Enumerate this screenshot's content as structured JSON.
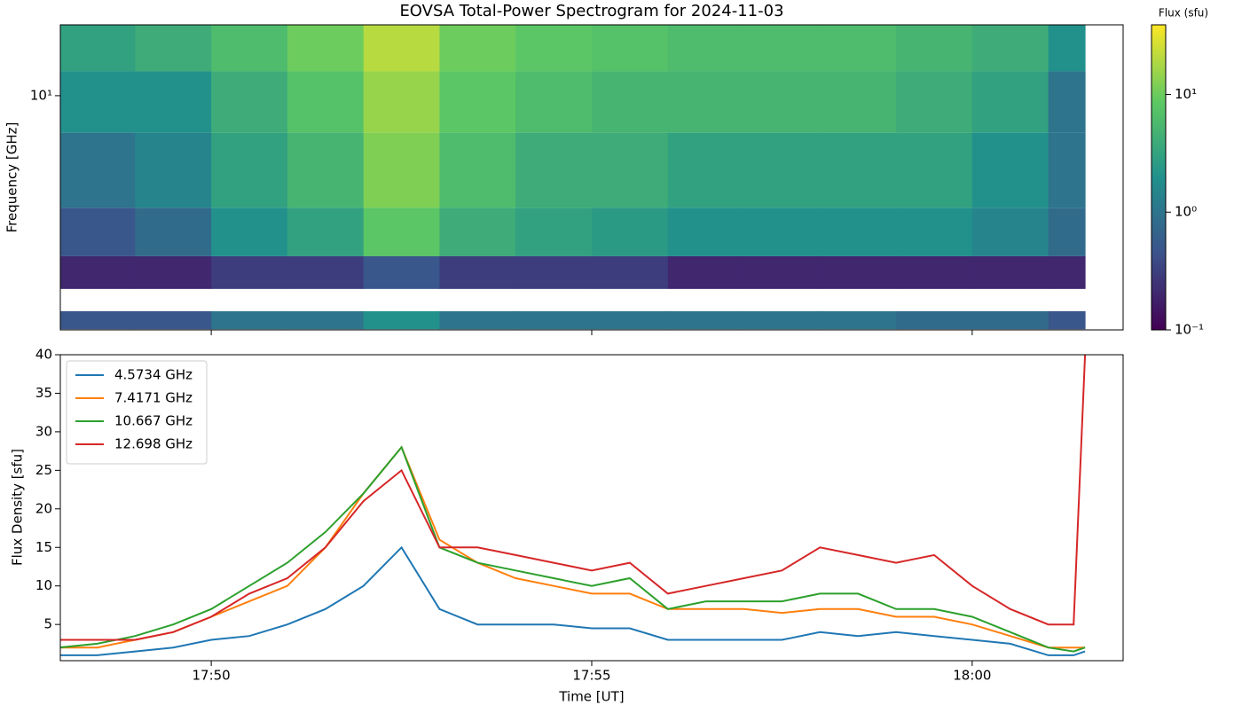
{
  "chart_data": [
    {
      "type": "heatmap",
      "title": "EOVSA Total-Power Spectrogram for 2024-11-03",
      "ylabel": "Frequency [GHz]",
      "xlim": [
        "17:48:01",
        "18:01:59"
      ],
      "xticks": [
        "17:50",
        "17:55",
        "18:00"
      ],
      "ylim": [
        2.4,
        15.4
      ],
      "log_y": true,
      "yticks": [
        {
          "value": 10,
          "label": "10¹"
        }
      ],
      "x_edges": [
        "17:48:00",
        "17:49:00",
        "17:50:00",
        "17:51:00",
        "17:52:00",
        "17:53:00",
        "17:54:00",
        "17:55:00",
        "17:56:00",
        "17:57:00",
        "17:58:00",
        "17:59:00",
        "18:00:00",
        "18:01:00",
        "18:01:29"
      ],
      "freq_bands": [
        [
          11.6,
          15.4
        ],
        [
          7.98,
          11.6
        ],
        [
          5.05,
          7.98
        ],
        [
          3.76,
          5.05
        ],
        [
          3.08,
          3.76
        ],
        [
          2.41,
          2.69
        ]
      ],
      "z": [
        [
          3,
          4,
          6,
          10,
          20,
          10,
          8,
          7,
          6,
          6,
          6,
          5,
          4,
          2
        ],
        [
          2,
          2,
          4,
          7,
          15,
          8,
          6,
          5,
          5,
          5,
          5,
          4,
          3,
          1
        ],
        [
          1,
          1.5,
          3,
          5,
          12,
          6,
          4,
          4,
          3,
          3,
          3,
          3,
          2,
          1
        ],
        [
          0.5,
          0.8,
          2,
          3,
          8,
          4,
          3,
          2.5,
          2,
          2,
          2,
          2,
          1.5,
          0.8
        ],
        [
          0.2,
          0.2,
          0.3,
          0.3,
          0.5,
          0.3,
          0.3,
          0.3,
          0.2,
          0.2,
          0.2,
          0.2,
          0.2,
          0.2
        ],
        [
          0.5,
          0.5,
          1,
          1,
          2,
          1,
          1,
          1,
          1,
          1,
          1,
          0.8,
          0.8,
          0.5
        ]
      ],
      "colorbar_label": "Flux (sfu)",
      "clim": [
        0.1,
        39
      ],
      "colormap": "viridis",
      "cticks": [
        {
          "value": 0.1,
          "label": "10⁻¹"
        },
        {
          "value": 1,
          "label": "10⁰"
        },
        {
          "value": 10,
          "label": "10¹"
        }
      ]
    },
    {
      "type": "line",
      "xlabel": "Time [UT]",
      "ylabel": "Flux Density [sfu]",
      "xlim": [
        "17:48:01",
        "18:01:59"
      ],
      "xticks": [
        "17:50",
        "17:55",
        "18:00"
      ],
      "ylim": [
        0.3,
        40
      ],
      "yticks": [
        5,
        10,
        15,
        20,
        25,
        30,
        35,
        40
      ],
      "legend": "upper left",
      "x": [
        "17:48:00",
        "17:48:30",
        "17:49:00",
        "17:49:30",
        "17:50:00",
        "17:50:30",
        "17:51:00",
        "17:51:30",
        "17:52:00",
        "17:52:30",
        "17:53:00",
        "17:53:30",
        "17:54:00",
        "17:54:30",
        "17:55:00",
        "17:55:30",
        "17:56:00",
        "17:56:30",
        "17:57:00",
        "17:57:30",
        "17:58:00",
        "17:58:30",
        "17:59:00",
        "17:59:30",
        "18:00:00",
        "18:00:30",
        "18:01:00",
        "18:01:20",
        "18:01:29"
      ],
      "series": [
        {
          "name": "4.5734 GHz",
          "color": "#1f77b4",
          "values": [
            1,
            1,
            1.5,
            2,
            3,
            3.5,
            5,
            7,
            10,
            15,
            7,
            5,
            5,
            5,
            4.5,
            4.5,
            3,
            3,
            3,
            3,
            4,
            3.5,
            4,
            3.5,
            3,
            2.5,
            1,
            1,
            1.5
          ]
        },
        {
          "name": "7.4171 GHz",
          "color": "#ff7f0e",
          "values": [
            2,
            2,
            3,
            4,
            6,
            8,
            10,
            15,
            22,
            28,
            16,
            13,
            11,
            10,
            9,
            9,
            7,
            7,
            7,
            6.5,
            7,
            7,
            6,
            6,
            5,
            3.5,
            2,
            2,
            2
          ]
        },
        {
          "name": "10.667 GHz",
          "color": "#2ca02c",
          "values": [
            2,
            2.5,
            3.5,
            5,
            7,
            10,
            13,
            17,
            22,
            28,
            15,
            13,
            12,
            11,
            10,
            11,
            7,
            8,
            8,
            8,
            9,
            9,
            7,
            7,
            6,
            4,
            2,
            1.5,
            2
          ]
        },
        {
          "name": "12.698 GHz",
          "color": "#d62728",
          "values": [
            3,
            3,
            3,
            4,
            6,
            9,
            11,
            15,
            21,
            25,
            15,
            15,
            14,
            13,
            12,
            13,
            9,
            10,
            11,
            12,
            15,
            14,
            13,
            14,
            10,
            7,
            5,
            5,
            40
          ]
        }
      ]
    }
  ]
}
